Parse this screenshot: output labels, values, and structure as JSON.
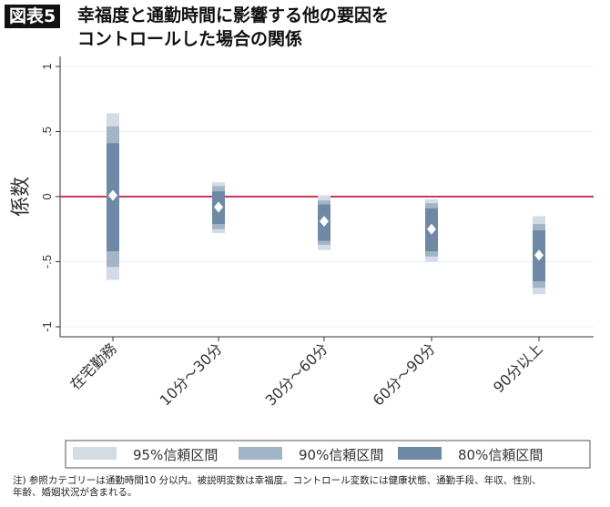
{
  "header": {
    "badge": "図表5",
    "title_line1": "幸福度と通勤時間に影響する他の要因を",
    "title_line2": "コントロールした場合の関係"
  },
  "notes": {
    "line1": "注) 参照カテゴリーは通勤時間10 分以内。被説明変数は幸福度。コントロール変数には健康状態、通勤手段、年収、性別、",
    "line2": "年齢、婚姻状況が含まれる。"
  },
  "chart_data": {
    "type": "coefficient-plot",
    "ylabel": "係数",
    "ylim": [
      -1.1,
      1.1
    ],
    "yticks": [
      1,
      0.5,
      0,
      -0.5,
      -1
    ],
    "ytick_labels": [
      "1",
      ".5",
      "0",
      "-.5",
      "-1"
    ],
    "reference_line": 0,
    "categories": [
      "在宅勤務",
      "10分〜30分",
      "30分〜60分",
      "60分〜90分",
      "90分以上"
    ],
    "estimates": [
      0.01,
      -0.08,
      -0.19,
      -0.25,
      -0.45
    ],
    "ci95": [
      [
        -0.64,
        0.64
      ],
      [
        -0.28,
        0.11
      ],
      [
        -0.41,
        0.01
      ],
      [
        -0.5,
        -0.02
      ],
      [
        -0.75,
        -0.15
      ]
    ],
    "ci90": [
      [
        -0.54,
        0.54
      ],
      [
        -0.25,
        0.08
      ],
      [
        -0.37,
        -0.03
      ],
      [
        -0.46,
        -0.05
      ],
      [
        -0.7,
        -0.21
      ]
    ],
    "ci80": [
      [
        -0.42,
        0.41
      ],
      [
        -0.21,
        0.04
      ],
      [
        -0.34,
        -0.06
      ],
      [
        -0.42,
        -0.09
      ],
      [
        -0.65,
        -0.26
      ]
    ],
    "legend": [
      "95%信頼区間",
      "90%信頼区間",
      "80%信頼区間"
    ],
    "legend_placement": "bottom",
    "colors": {
      "ci95": "#d3dbe4",
      "ci90": "#a3b4c6",
      "ci80": "#6e89a5",
      "reference": "#c8385a",
      "marker": "#ffffff",
      "grid": "#e8eef0"
    }
  }
}
